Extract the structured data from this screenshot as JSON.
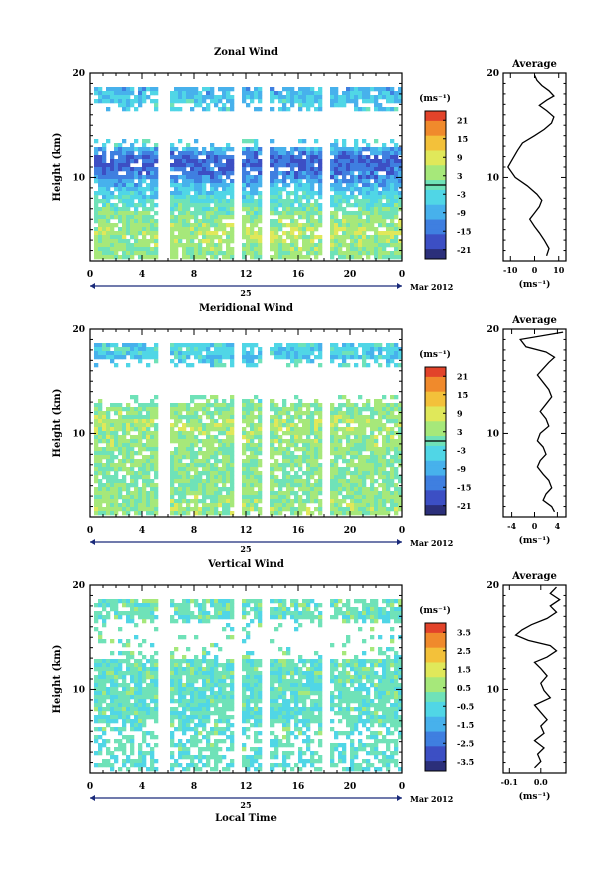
{
  "figure": {
    "panels": [
      {
        "title": "Zonal Wind",
        "ylabel": "Height (km)",
        "xlabel": "",
        "yticks": [
          "20",
          "10"
        ],
        "xticks": [
          "0",
          "4",
          "8",
          "12",
          "16",
          "20",
          "0"
        ],
        "day_label": "25",
        "date_label": "Mar 2012",
        "colorbar_unit": "(ms⁻¹)",
        "colorbar_ticks": [
          "21",
          "15",
          "9",
          "3",
          "-3",
          "-9",
          "-15",
          "-21"
        ],
        "avg_title": "Average",
        "avg_xticks": [
          "-10",
          "0",
          "10"
        ],
        "avg_yticks": [
          "20",
          "10"
        ],
        "avg_unit": "(ms⁻¹)"
      },
      {
        "title": "Meridional Wind",
        "ylabel": "Height (km)",
        "xlabel": "",
        "yticks": [
          "20",
          "10"
        ],
        "xticks": [
          "0",
          "4",
          "8",
          "12",
          "16",
          "20",
          "0"
        ],
        "day_label": "25",
        "date_label": "Mar 2012",
        "colorbar_unit": "(ms⁻¹)",
        "colorbar_ticks": [
          "21",
          "15",
          "9",
          "3",
          "-3",
          "-9",
          "-15",
          "-21"
        ],
        "avg_title": "Average",
        "avg_xticks": [
          "-4",
          "0",
          "4"
        ],
        "avg_yticks": [
          "20",
          "10"
        ],
        "avg_unit": "(ms⁻¹)"
      },
      {
        "title": "Vertical Wind",
        "ylabel": "Height (km)",
        "xlabel": "Local Time",
        "yticks": [
          "20",
          "10"
        ],
        "xticks": [
          "0",
          "4",
          "8",
          "12",
          "16",
          "20",
          "0"
        ],
        "day_label": "25",
        "date_label": "Mar 2012",
        "colorbar_unit": "(ms⁻¹)",
        "colorbar_ticks": [
          "3.5",
          "2.5",
          "1.5",
          "0.5",
          "-0.5",
          "-1.5",
          "-2.5",
          "-3.5"
        ],
        "avg_title": "Average",
        "avg_xticks": [
          "-0.1",
          "0.0"
        ],
        "avg_yticks": [
          "20",
          "10"
        ],
        "avg_unit": "(ms⁻¹)"
      }
    ]
  },
  "chart_data": [
    {
      "type": "heatmap",
      "title": "Zonal Wind",
      "ylabel": "Height (km)",
      "ylim": [
        2,
        20
      ],
      "xlim_hours": [
        0,
        24
      ],
      "xticks": [
        "0",
        "4",
        "8",
        "12",
        "16",
        "20",
        "0"
      ],
      "date_label": "Mar 2012",
      "colorbar_ticks": [
        21,
        15,
        9,
        3,
        -3,
        -9,
        -15,
        -21
      ],
      "data_gaps_hours": [
        5.5,
        11.3,
        13.3,
        18.0
      ],
      "colormap": [
        "#2b2f7a",
        "#3c4fc4",
        "#3f7fe0",
        "#47b1ec",
        "#50d6e6",
        "#6fe2b8",
        "#a6e87a",
        "#e0e85a",
        "#f3c13a",
        "#f08a2c",
        "#e2432a"
      ],
      "profile_by_height_km": [
        {
          "z": 3,
          "v": 3
        },
        {
          "z": 5,
          "v": 6
        },
        {
          "z": 7,
          "v": 1
        },
        {
          "z": 9,
          "v": -6
        },
        {
          "z": 10.5,
          "v": -15
        },
        {
          "z": 12,
          "v": -18
        },
        {
          "z": 13.5,
          "v": -4
        },
        {
          "z": 17.5,
          "v": -6
        },
        {
          "z": 18.5,
          "v": -9
        }
      ]
    },
    {
      "type": "line",
      "title": "Average",
      "xlabel": "(ms⁻¹)",
      "xlim": [
        -13,
        13
      ],
      "ylim": [
        2,
        20
      ],
      "x": [
        5,
        6,
        4,
        2,
        0,
        -2,
        0,
        2,
        3,
        1,
        -3,
        -8,
        -11,
        -9,
        -7,
        -5,
        0,
        4,
        7,
        8,
        5,
        2,
        5,
        8,
        6,
        3,
        1,
        0
      ],
      "y": [
        2.5,
        3.2,
        4.0,
        4.7,
        5.3,
        6.0,
        6.6,
        7.2,
        7.8,
        8.4,
        9.2,
        10.0,
        11.0,
        11.8,
        12.6,
        13.3,
        14.0,
        14.6,
        15.2,
        15.8,
        16.4,
        16.9,
        17.4,
        17.8,
        18.3,
        18.8,
        19.3,
        19.8
      ]
    },
    {
      "type": "heatmap",
      "title": "Meridional Wind",
      "ylabel": "Height (km)",
      "ylim": [
        2,
        20
      ],
      "xlim_hours": [
        0,
        24
      ],
      "xticks": [
        "0",
        "4",
        "8",
        "12",
        "16",
        "20",
        "0"
      ],
      "date_label": "Mar 2012",
      "colorbar_ticks": [
        21,
        15,
        9,
        3,
        -3,
        -9,
        -15,
        -21
      ],
      "data_gaps_hours": [
        5.5,
        11.3,
        13.3,
        18.0
      ],
      "colormap": [
        "#2b2f7a",
        "#3c4fc4",
        "#3f7fe0",
        "#47b1ec",
        "#50d6e6",
        "#6fe2b8",
        "#a6e87a",
        "#e0e85a",
        "#f3c13a",
        "#f08a2c",
        "#e2432a"
      ],
      "profile_by_height_km": [
        {
          "z": 3,
          "v": 4
        },
        {
          "z": 6,
          "v": 2
        },
        {
          "z": 9,
          "v": 3
        },
        {
          "z": 11,
          "v": 5
        },
        {
          "z": 13,
          "v": 2
        },
        {
          "z": 17.5,
          "v": -6
        },
        {
          "z": 18.5,
          "v": -5
        }
      ]
    },
    {
      "type": "line",
      "title": "Average",
      "xlabel": "(ms⁻¹)",
      "xlim": [
        -5.5,
        5.5
      ],
      "ylim": [
        2,
        20
      ],
      "x": [
        3.5,
        3.0,
        1.5,
        2.0,
        3.0,
        2.5,
        1.5,
        0.5,
        1.0,
        2.0,
        1.5,
        0.5,
        1.0,
        2.5,
        2.0,
        1.0,
        2.0,
        3.0,
        2.5,
        1.5,
        0.5,
        1.5,
        2.5,
        3.5,
        2.0,
        -1.5,
        -2.5,
        5.0
      ],
      "y": [
        2.5,
        3.0,
        3.6,
        4.2,
        4.8,
        5.5,
        6.1,
        6.8,
        7.4,
        8.0,
        8.7,
        9.3,
        10.0,
        10.7,
        11.4,
        12.1,
        12.8,
        13.5,
        14.2,
        14.9,
        15.6,
        16.2,
        16.8,
        17.3,
        17.8,
        18.3,
        19.0,
        19.7
      ]
    },
    {
      "type": "heatmap",
      "title": "Vertical Wind",
      "ylabel": "Height (km)",
      "ylim": [
        2,
        20
      ],
      "xlim_hours": [
        0,
        24
      ],
      "xticks": [
        "0",
        "4",
        "8",
        "12",
        "16",
        "20",
        "0"
      ],
      "date_label": "Mar 2012",
      "colorbar_ticks": [
        3.5,
        2.5,
        1.5,
        0.5,
        -0.5,
        -1.5,
        -2.5,
        -3.5
      ],
      "data_gaps_hours": [
        5.5,
        11.3,
        13.3,
        18.0
      ],
      "colormap": [
        "#2b2f7a",
        "#3c4fc4",
        "#3f7fe0",
        "#47b1ec",
        "#50d6e6",
        "#6fe2b8",
        "#a6e87a",
        "#e0e85a",
        "#f3c13a",
        "#f08a2c",
        "#e2432a"
      ],
      "profile_by_height_km": [
        {
          "z": 3,
          "v": -0.3
        },
        {
          "z": 10,
          "v": -0.2
        },
        {
          "z": 18,
          "v": -0.1
        }
      ]
    },
    {
      "type": "line",
      "title": "Average",
      "xlabel": "(ms⁻¹)",
      "xlim": [
        -0.12,
        0.08
      ],
      "ylim": [
        2,
        20
      ],
      "x": [
        -0.02,
        0.0,
        -0.01,
        0.01,
        -0.02,
        0.01,
        0.0,
        0.02,
        0.0,
        -0.02,
        0.03,
        0.01,
        0.0,
        0.02,
        0.0,
        -0.02,
        0.02,
        0.05,
        0.03,
        -0.04,
        -0.08,
        -0.06,
        -0.03,
        0.02,
        0.05,
        0.03,
        0.06,
        0.03,
        0.05
      ],
      "y": [
        2.5,
        3.1,
        3.8,
        4.4,
        5.1,
        5.8,
        6.5,
        7.1,
        7.8,
        8.5,
        9.2,
        9.9,
        10.6,
        11.3,
        12.0,
        12.6,
        13.1,
        13.7,
        14.2,
        14.7,
        15.2,
        15.7,
        16.2,
        16.8,
        17.4,
        18.0,
        18.6,
        19.2,
        19.8
      ]
    }
  ]
}
